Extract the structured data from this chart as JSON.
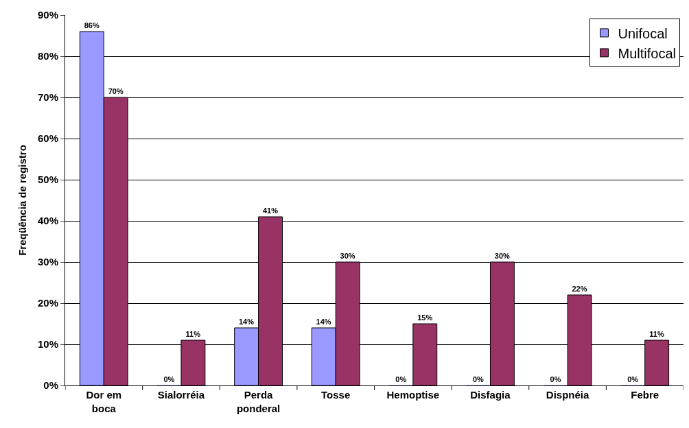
{
  "chart_data": {
    "type": "bar",
    "ylabel": "Freqüência de registro",
    "categories": [
      "Dor em boca",
      "Sialorréia",
      "Perda ponderal",
      "Tosse",
      "Hemoptise",
      "Disfagia",
      "Dispnéia",
      "Febre"
    ],
    "series": [
      {
        "name": "Unifocal",
        "color": "#9999ff",
        "values": [
          86,
          0,
          14,
          14,
          0,
          0,
          0,
          0
        ],
        "value_labels": [
          "86%",
          "0%",
          "14%",
          "14%",
          "0%",
          "0%",
          "0%",
          "0%"
        ]
      },
      {
        "name": "Multifocal",
        "color": "#993366",
        "values": [
          70,
          11,
          41,
          30,
          15,
          30,
          22,
          11
        ],
        "value_labels": [
          "70%",
          "11%",
          "41%",
          "30%",
          "15%",
          "30%",
          "22%",
          "11%"
        ]
      }
    ],
    "ylim": [
      0,
      90
    ],
    "yticks": [
      {
        "value": 0,
        "label": "0%"
      },
      {
        "value": 10,
        "label": "10%"
      },
      {
        "value": 20,
        "label": "20%"
      },
      {
        "value": 30,
        "label": "30%"
      },
      {
        "value": 40,
        "label": "40%"
      },
      {
        "value": 50,
        "label": "50%"
      },
      {
        "value": 60,
        "label": "60%"
      },
      {
        "value": 70,
        "label": "70%"
      },
      {
        "value": 80,
        "label": "80%"
      },
      {
        "value": 90,
        "label": "90%"
      }
    ],
    "grid": "y",
    "legend": "top right"
  }
}
